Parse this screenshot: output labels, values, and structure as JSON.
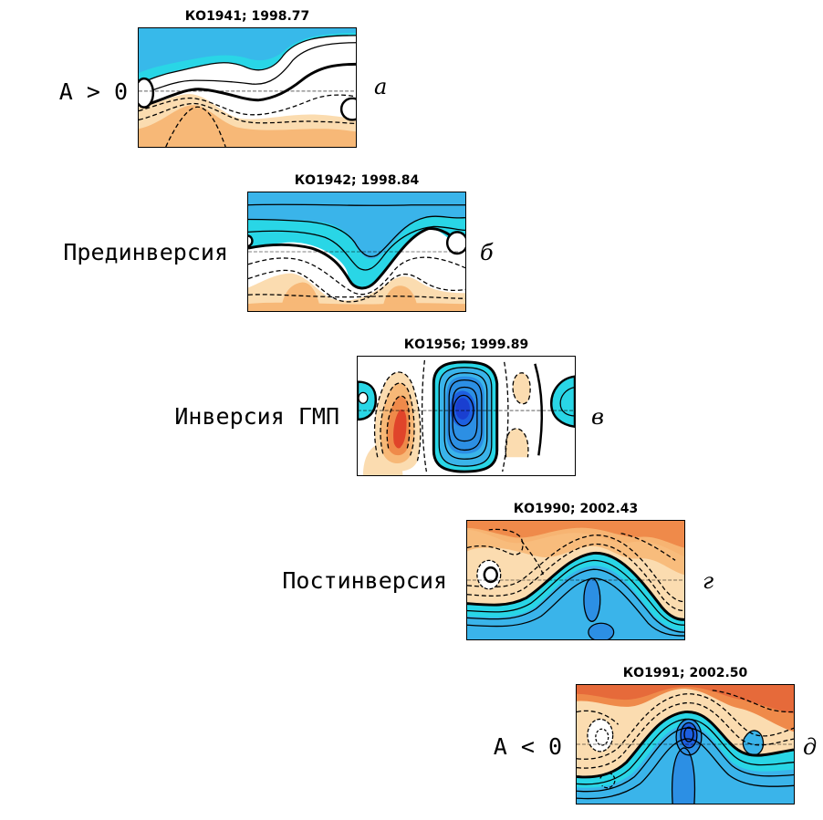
{
  "colors": {
    "blue_deep": "#1d5fe0",
    "blue": "#3ab4ea",
    "cyan": "#29d6e6",
    "white": "#ffffff",
    "peach_light": "#fbdcb0",
    "peach": "#f7b877",
    "orange": "#ef8a4a",
    "red": "#e0442a"
  },
  "panels": [
    {
      "title": "КО1941;   1998.77",
      "label": "A > 0",
      "letter": "а"
    },
    {
      "title": "КО1942;   1998.84",
      "label": "Прединверсия",
      "letter": "б"
    },
    {
      "title": "КО1956;   1999.89",
      "label": "Инверсия ГМП",
      "letter": "в"
    },
    {
      "title": "КО1990;   2002.43",
      "label": "Постинверсия",
      "letter": "г"
    },
    {
      "title": "КО1991;   2002.50",
      "label": "A < 0",
      "letter": "д"
    }
  ]
}
